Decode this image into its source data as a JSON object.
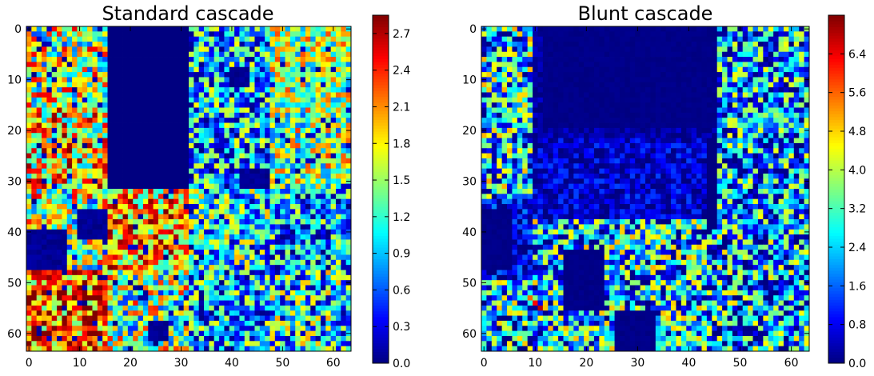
{
  "chart_data": [
    {
      "type": "heatmap",
      "title": "Standard cascade",
      "grid_size": [
        64,
        64
      ],
      "colormap": "jet",
      "xlim": [
        0,
        63
      ],
      "ylim": [
        0,
        63
      ],
      "x_ticks": [
        "0",
        "10",
        "20",
        "30",
        "40",
        "50",
        "60"
      ],
      "y_ticks": [
        "0",
        "10",
        "20",
        "30",
        "40",
        "50",
        "60"
      ],
      "y_axis_direction": "top-to-bottom",
      "value_range": [
        0,
        2.85
      ],
      "colorbar_ticks": [
        "0.0",
        "0.3",
        "0.6",
        "0.9",
        "1.2",
        "1.5",
        "1.8",
        "2.1",
        "2.4",
        "2.7"
      ],
      "regions": [
        {
          "rows": [
            0,
            16
          ],
          "cols": [
            0,
            16
          ],
          "level": 1.55,
          "spread": 1.0
        },
        {
          "rows": [
            0,
            32
          ],
          "cols": [
            16,
            32
          ],
          "level": 0.0,
          "spread": 0.0
        },
        {
          "rows": [
            0,
            16
          ],
          "cols": [
            32,
            48
          ],
          "level": 0.95,
          "spread": 0.9
        },
        {
          "rows": [
            0,
            16
          ],
          "cols": [
            48,
            64
          ],
          "level": 1.5,
          "spread": 0.8
        },
        {
          "rows": [
            16,
            32
          ],
          "cols": [
            0,
            16
          ],
          "level": 1.85,
          "spread": 1.0
        },
        {
          "rows": [
            16,
            32
          ],
          "cols": [
            32,
            48
          ],
          "level": 0.9,
          "spread": 0.9
        },
        {
          "rows": [
            16,
            32
          ],
          "cols": [
            48,
            64
          ],
          "level": 1.45,
          "spread": 0.9
        },
        {
          "rows": [
            32,
            48
          ],
          "cols": [
            0,
            16
          ],
          "level": 1.5,
          "spread": 1.1
        },
        {
          "rows": [
            32,
            48
          ],
          "cols": [
            16,
            32
          ],
          "level": 2.0,
          "spread": 0.9
        },
        {
          "rows": [
            32,
            48
          ],
          "cols": [
            32,
            48
          ],
          "level": 1.1,
          "spread": 0.9
        },
        {
          "rows": [
            32,
            48
          ],
          "cols": [
            48,
            64
          ],
          "level": 0.85,
          "spread": 0.9
        },
        {
          "rows": [
            48,
            64
          ],
          "cols": [
            0,
            16
          ],
          "level": 2.2,
          "spread": 0.9
        },
        {
          "rows": [
            48,
            64
          ],
          "cols": [
            16,
            32
          ],
          "level": 1.45,
          "spread": 1.0
        },
        {
          "rows": [
            48,
            64
          ],
          "cols": [
            32,
            48
          ],
          "level": 0.9,
          "spread": 0.9
        },
        {
          "rows": [
            48,
            64
          ],
          "cols": [
            48,
            64
          ],
          "level": 1.05,
          "spread": 1.0
        }
      ],
      "zero_blocks": [
        {
          "rows": [
            36,
            42
          ],
          "cols": [
            10,
            16
          ]
        },
        {
          "rows": [
            40,
            48
          ],
          "cols": [
            0,
            8
          ]
        },
        {
          "rows": [
            28,
            32
          ],
          "cols": [
            42,
            48
          ]
        },
        {
          "rows": [
            8,
            12
          ],
          "cols": [
            40,
            44
          ]
        },
        {
          "rows": [
            58,
            62
          ],
          "cols": [
            24,
            28
          ]
        }
      ]
    },
    {
      "type": "heatmap",
      "title": "Blunt cascade",
      "grid_size": [
        64,
        64
      ],
      "colormap": "jet",
      "xlim": [
        0,
        63
      ],
      "ylim": [
        0,
        63
      ],
      "x_ticks": [
        "0",
        "10",
        "20",
        "30",
        "40",
        "50",
        "60"
      ],
      "y_ticks": [
        "0",
        "10",
        "20",
        "30",
        "40",
        "50",
        "60"
      ],
      "y_axis_direction": "top-to-bottom",
      "value_range": [
        0,
        7.2
      ],
      "colorbar_ticks": [
        "0.0",
        "0.8",
        "1.6",
        "2.4",
        "3.2",
        "4.0",
        "4.8",
        "5.6",
        "6.4"
      ],
      "regions": [
        {
          "rows": [
            0,
            34
          ],
          "cols": [
            0,
            10
          ],
          "level": 2.6,
          "spread": 2.6
        },
        {
          "rows": [
            0,
            22
          ],
          "cols": [
            10,
            46
          ],
          "level": 0.25,
          "spread": 0.4
        },
        {
          "rows": [
            22,
            38
          ],
          "cols": [
            10,
            44
          ],
          "level": 0.6,
          "spread": 0.8
        },
        {
          "rows": [
            0,
            40
          ],
          "cols": [
            46,
            64
          ],
          "level": 2.1,
          "spread": 2.4
        },
        {
          "rows": [
            34,
            50
          ],
          "cols": [
            0,
            10
          ],
          "level": 0.7,
          "spread": 1.2
        },
        {
          "rows": [
            38,
            64
          ],
          "cols": [
            10,
            44
          ],
          "level": 2.5,
          "spread": 2.6
        },
        {
          "rows": [
            40,
            64
          ],
          "cols": [
            44,
            64
          ],
          "level": 2.2,
          "spread": 2.6
        },
        {
          "rows": [
            50,
            64
          ],
          "cols": [
            0,
            10
          ],
          "level": 2.2,
          "spread": 2.8
        }
      ],
      "zero_blocks": [
        {
          "rows": [
            0,
            20
          ],
          "cols": [
            12,
            46
          ]
        },
        {
          "rows": [
            44,
            56
          ],
          "cols": [
            16,
            24
          ]
        },
        {
          "rows": [
            56,
            64
          ],
          "cols": [
            26,
            34
          ]
        },
        {
          "rows": [
            36,
            48
          ],
          "cols": [
            0,
            6
          ]
        }
      ],
      "hotspots": [
        {
          "row": 54,
          "col": 10,
          "value": 6.3
        },
        {
          "row": 55,
          "col": 11,
          "value": 6.8
        },
        {
          "row": 53,
          "col": 9,
          "value": 5.6
        },
        {
          "row": 12,
          "col": 1,
          "value": 4.9
        },
        {
          "row": 18,
          "col": 6,
          "value": 4.5
        }
      ]
    }
  ]
}
